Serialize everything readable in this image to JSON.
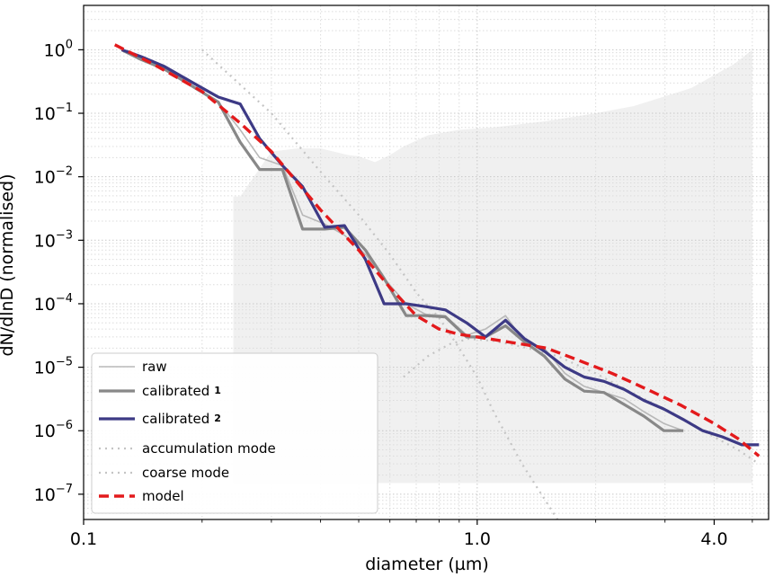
{
  "chart_data": {
    "type": "line",
    "title": "",
    "xlabel": "diameter (µm)",
    "ylabel": "dN/dlnD (normalised)",
    "x_scale": "log",
    "y_scale": "log",
    "xlim": [
      0.1,
      5.5
    ],
    "ylim": [
      4e-08,
      5.0
    ],
    "x_ticks": [
      0.1,
      1.0,
      4.0
    ],
    "x_tick_labels": [
      "0.1",
      "1.0",
      "4.0"
    ],
    "y_ticks": [
      1e-07,
      1e-06,
      1e-05,
      0.0001,
      0.001,
      0.01,
      0.1,
      1
    ],
    "y_tick_labels": [
      {
        "base": "10",
        "exp": "−7"
      },
      {
        "base": "10",
        "exp": "−6"
      },
      {
        "base": "10",
        "exp": "−5"
      },
      {
        "base": "10",
        "exp": "−4"
      },
      {
        "base": "10",
        "exp": "−3"
      },
      {
        "base": "10",
        "exp": "−2"
      },
      {
        "base": "10",
        "exp": "−1"
      },
      {
        "base": "10",
        "exp": "0"
      }
    ],
    "grid": true,
    "legend_position": "lower-left",
    "legend": [
      {
        "label": "raw",
        "sup": ""
      },
      {
        "label": "calibrated",
        "sup": "1"
      },
      {
        "label": "calibrated",
        "sup": "2"
      },
      {
        "label": "accumulation mode",
        "sup": ""
      },
      {
        "label": "coarse mode",
        "sup": ""
      },
      {
        "label": "model",
        "sup": ""
      }
    ],
    "colors": {
      "raw": "#b8b8b8",
      "calibrated1": "#888888",
      "calibrated2": "#3d3a85",
      "accumulation": "#c4c4c4",
      "coarse": "#c4c4c4",
      "model": "#e31a1c",
      "band": "#f0f0f0"
    },
    "uncertainty_band": [
      [
        0.24,
        1.5e-07,
        0.0049
      ],
      [
        0.25,
        1.5e-07,
        0.0049
      ],
      [
        0.3,
        1.5e-07,
        0.025
      ],
      [
        0.35,
        1.5e-07,
        0.028
      ],
      [
        0.4,
        1.5e-07,
        0.028
      ],
      [
        0.47,
        1.5e-07,
        0.022
      ],
      [
        0.5,
        1.5e-07,
        0.021
      ],
      [
        0.55,
        1.5e-07,
        0.017
      ],
      [
        0.6,
        1.5e-07,
        0.022
      ],
      [
        0.65,
        1.5e-07,
        0.03
      ],
      [
        0.75,
        1.5e-07,
        0.045
      ],
      [
        0.9,
        1.5e-07,
        0.055
      ],
      [
        1.1,
        1.5e-07,
        0.06
      ],
      [
        1.5,
        1.5e-07,
        0.075
      ],
      [
        2.0,
        1.5e-07,
        0.1
      ],
      [
        2.5,
        1.5e-07,
        0.13
      ],
      [
        3.5,
        1.5e-07,
        0.25
      ],
      [
        4.5,
        1.5e-07,
        0.6
      ],
      [
        5.0,
        1.5e-07,
        1.0
      ]
    ],
    "series": [
      {
        "name": "raw",
        "x": [
          0.125,
          0.14,
          0.16,
          0.19,
          0.22,
          0.25,
          0.28,
          0.32,
          0.36,
          0.41,
          0.46,
          0.52,
          0.58,
          0.66,
          0.74,
          0.83,
          0.94,
          1.05,
          1.18,
          1.32,
          1.48,
          1.67,
          1.87,
          2.1,
          2.36,
          2.65,
          2.98,
          3.34
        ],
        "y": [
          1.0,
          0.75,
          0.52,
          0.27,
          0.15,
          0.055,
          0.02,
          0.015,
          0.0025,
          0.0018,
          0.0012,
          0.0006,
          0.00025,
          0.0001,
          6.8e-05,
          6.5e-05,
          3.2e-05,
          4e-05,
          6.5e-05,
          2.5e-05,
          2e-05,
          8e-06,
          5e-06,
          4e-06,
          3.2e-06,
          2e-06,
          1.3e-06,
          1e-06
        ]
      },
      {
        "name": "calibrated 1",
        "x": [
          0.125,
          0.14,
          0.16,
          0.19,
          0.22,
          0.25,
          0.28,
          0.32,
          0.36,
          0.41,
          0.46,
          0.52,
          0.58,
          0.66,
          0.74,
          0.83,
          0.94,
          1.05,
          1.18,
          1.32,
          1.48,
          1.67,
          1.87,
          2.1,
          2.36,
          2.65,
          2.98,
          3.34
        ],
        "y": [
          1.0,
          0.7,
          0.5,
          0.26,
          0.15,
          0.035,
          0.013,
          0.013,
          0.0015,
          0.0015,
          0.0016,
          0.0007,
          0.00025,
          6.5e-05,
          6.5e-05,
          6.2e-05,
          3e-05,
          3e-05,
          4.5e-05,
          2.5e-05,
          1.5e-05,
          6.5e-06,
          4.2e-06,
          4e-06,
          2.6e-06,
          1.7e-06,
          1e-06,
          1e-06
        ]
      },
      {
        "name": "calibrated 2",
        "x": [
          0.125,
          0.14,
          0.16,
          0.19,
          0.22,
          0.25,
          0.28,
          0.32,
          0.36,
          0.41,
          0.46,
          0.52,
          0.58,
          0.66,
          0.74,
          0.83,
          0.94,
          1.05,
          1.18,
          1.32,
          1.48,
          1.67,
          1.87,
          2.1,
          2.36,
          2.65,
          2.98,
          3.34,
          3.74,
          4.2,
          4.7,
          5.2
        ],
        "y": [
          1.0,
          0.78,
          0.55,
          0.3,
          0.18,
          0.14,
          0.04,
          0.015,
          0.007,
          0.0016,
          0.0017,
          0.0005,
          0.0001,
          0.0001,
          9e-05,
          8e-05,
          5e-05,
          3e-05,
          5.5e-05,
          2.8e-05,
          1.8e-05,
          1e-05,
          7e-06,
          6e-06,
          4.5e-06,
          3e-06,
          2.2e-06,
          1.5e-06,
          1e-06,
          8e-07,
          6e-07,
          6e-07
        ]
      },
      {
        "name": "accumulation mode",
        "x": [
          0.2,
          0.3,
          0.4,
          0.5,
          0.6,
          0.7,
          0.8,
          0.9,
          1.0,
          1.1,
          1.3,
          1.6
        ],
        "y": [
          1.0,
          0.1,
          0.012,
          0.0025,
          0.0006,
          0.00015,
          6e-05,
          2e-05,
          7e-06,
          2e-06,
          3e-07,
          4e-08
        ]
      },
      {
        "name": "coarse mode",
        "x": [
          0.65,
          0.75,
          0.85,
          0.95,
          1.1,
          1.3,
          1.6,
          2.0,
          2.5,
          3.0,
          3.5,
          4.0,
          4.6,
          5.2
        ],
        "y": [
          7e-06,
          1.5e-05,
          2.3e-05,
          2.8e-05,
          2.6e-05,
          2.1e-05,
          1.5e-05,
          8e-06,
          3.8e-06,
          2.2e-06,
          1.3e-06,
          8e-07,
          5e-07,
          3e-07
        ]
      },
      {
        "name": "model",
        "x": [
          0.12,
          0.15,
          0.2,
          0.25,
          0.3,
          0.35,
          0.4,
          0.5,
          0.6,
          0.7,
          0.8,
          0.9,
          1.0,
          1.2,
          1.5,
          1.8,
          2.2,
          2.7,
          3.3,
          4.0,
          4.6,
          5.2
        ],
        "y": [
          1.2,
          0.6,
          0.22,
          0.07,
          0.025,
          0.008,
          0.003,
          0.0007,
          0.00018,
          6.5e-05,
          4e-05,
          3.3e-05,
          3e-05,
          2.5e-05,
          2e-05,
          1.3e-05,
          8e-06,
          4.5e-06,
          2.5e-06,
          1.3e-06,
          7.5e-07,
          4e-07
        ]
      }
    ]
  }
}
